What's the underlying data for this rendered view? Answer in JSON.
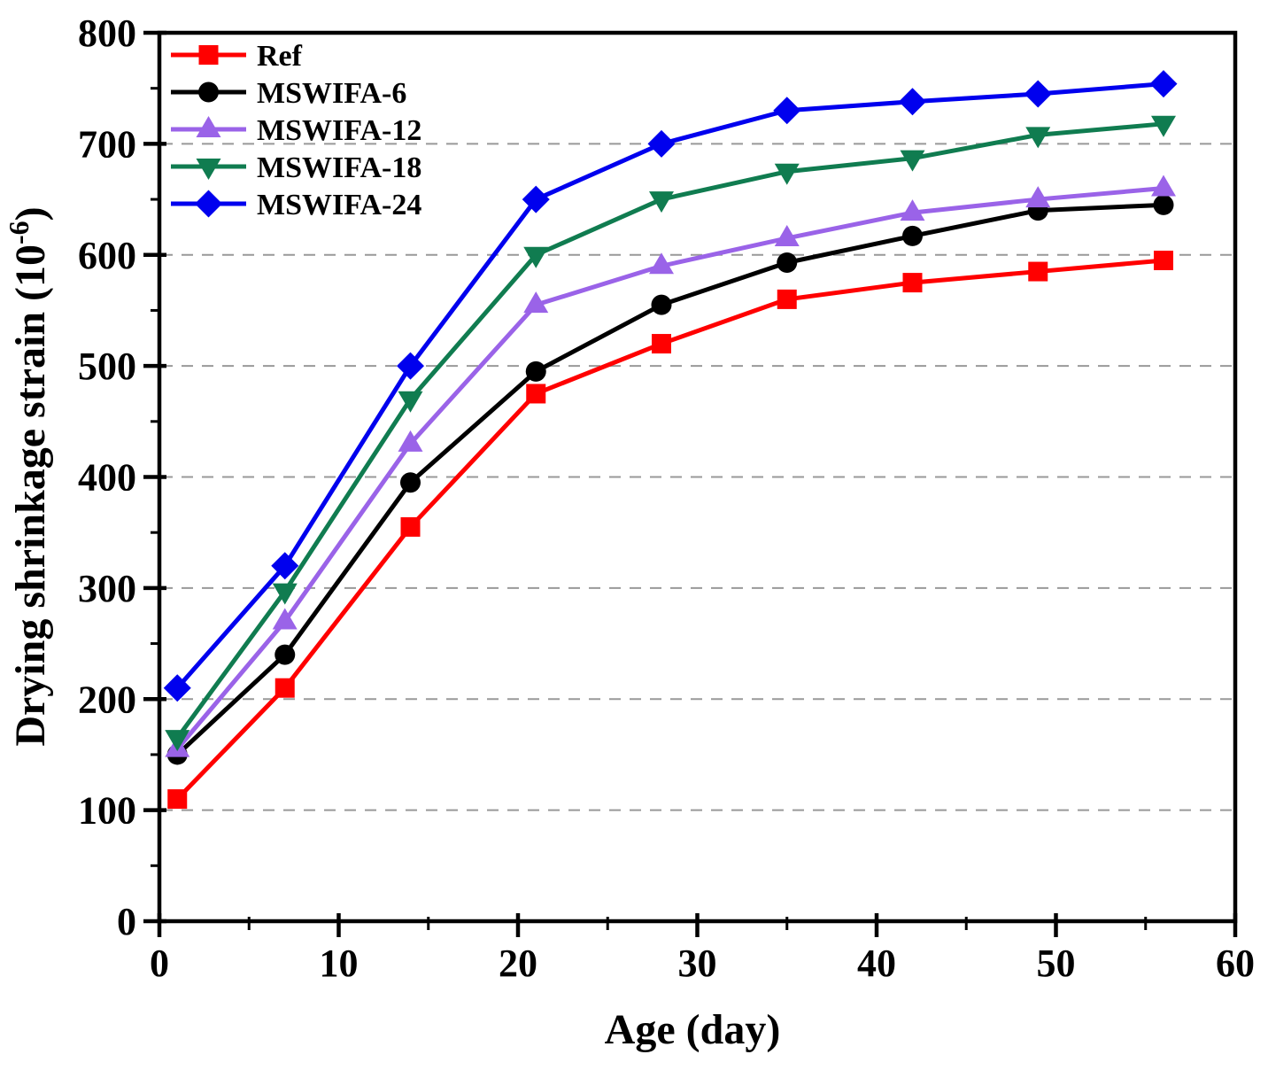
{
  "chart_data": {
    "type": "line",
    "x": [
      1,
      7,
      14,
      21,
      28,
      35,
      42,
      49,
      56
    ],
    "series": [
      {
        "name": "Ref",
        "color": "#FF0000",
        "marker": "square",
        "values": [
          110,
          210,
          355,
          475,
          520,
          560,
          575,
          585,
          595
        ]
      },
      {
        "name": "MSWIFA-6",
        "color": "#000000",
        "marker": "circle",
        "values": [
          150,
          240,
          395,
          495,
          555,
          593,
          617,
          640,
          645
        ]
      },
      {
        "name": "MSWIFA-12",
        "color": "#9A63E8",
        "marker": "triangle-up",
        "values": [
          155,
          270,
          430,
          555,
          590,
          615,
          638,
          650,
          660
        ]
      },
      {
        "name": "MSWIFA-18",
        "color": "#107C50",
        "marker": "triangle-down",
        "values": [
          165,
          297,
          470,
          600,
          650,
          675,
          687,
          708,
          718
        ]
      },
      {
        "name": "MSWIFA-24",
        "color": "#0000EE",
        "marker": "diamond",
        "values": [
          210,
          320,
          500,
          650,
          700,
          730,
          738,
          745,
          754
        ]
      }
    ],
    "title": "",
    "xlabel": "Age (day)",
    "ylabel": "Drying shrinkage strain (10-6)",
    "ylabel_parts": {
      "prefix": "Drying shrinkage strain (10",
      "sup": "-6",
      "suffix": ")"
    },
    "xlim": [
      0,
      60
    ],
    "ylim": [
      0,
      800
    ],
    "x_major_ticks": [
      0,
      10,
      20,
      30,
      40,
      50,
      60
    ],
    "y_major_ticks": [
      0,
      100,
      200,
      300,
      400,
      500,
      600,
      700,
      800
    ],
    "grid": "horizontal-dashed",
    "gridline_color": "#999999",
    "legend_position": "top-left",
    "axis_color": "#000000"
  }
}
